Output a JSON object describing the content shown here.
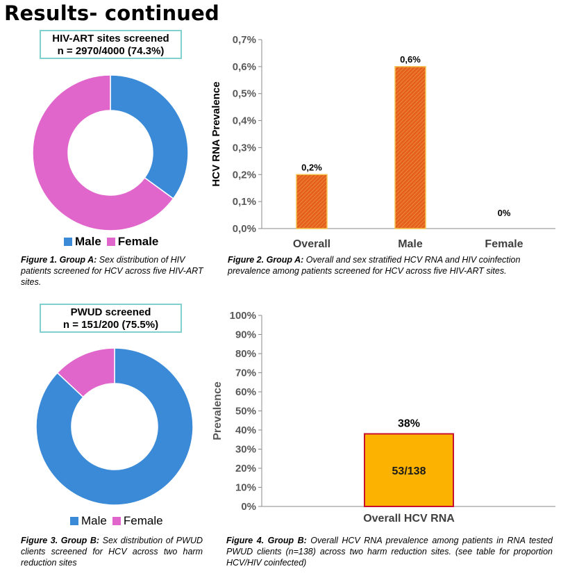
{
  "page": {
    "title": "Results- continued"
  },
  "colors": {
    "male": "#3a8ad8",
    "female": "#e066cc",
    "bar_fig2": "#e4601c",
    "bar_fig2_edge": "#f3c24e",
    "bar_fig4": "#fbb200",
    "bar_fig4_edge": "#c8102e",
    "box_border": "#7fd0cf"
  },
  "group_a": {
    "box_line1": "HIV-ART sites screened",
    "box_line2": "n = 2970/4000 (74.3%)",
    "caption_label": "Figure 1. Group A:",
    "caption_text": " Sex distribution of HIV patients screened for HCV across five HIV-ART sites."
  },
  "group_b": {
    "box_line1": "PWUD screened",
    "box_line2": "n = 151/200 (75.5%)",
    "caption_label": "Figure 3. Group B:",
    "caption_text": " Sex distribution of PWUD clients screened for HCV across two harm reduction sites"
  },
  "figure2": {
    "caption_label": "Figure 2. Group A:",
    "caption_text": " Overall and sex stratified HCV RNA and HIV coinfection prevalence among patients screened for HCV across five HIV-ART sites."
  },
  "figure4": {
    "caption_label": "Figure 4. Group B:",
    "caption_text": " Overall HCV RNA prevalence among patients in RNA tested PWUD clients (n=138) across two harm reduction sites. (see table for proportion HCV/HIV coinfected)"
  },
  "chart_data": [
    {
      "id": "fig1",
      "type": "pie",
      "donut": true,
      "categories": [
        "Male",
        "Female"
      ],
      "values": [
        35,
        65
      ],
      "colors": [
        "#3a8ad8",
        "#e066cc"
      ],
      "legend": "bottom"
    },
    {
      "id": "fig2",
      "type": "bar",
      "categories": [
        "Overall",
        "Male",
        "Female"
      ],
      "values": [
        0.2,
        0.6,
        0.0
      ],
      "data_labels": [
        "0,2%",
        "0,6%",
        "0%"
      ],
      "ylabel": "HCV RNA Prevalence",
      "ylim": [
        0,
        0.7
      ],
      "yticks": [
        "0,0%",
        "0,1%",
        "0,2%",
        "0,3%",
        "0,4%",
        "0,5%",
        "0,6%",
        "0,7%"
      ],
      "grid": false
    },
    {
      "id": "fig3",
      "type": "pie",
      "donut": true,
      "categories": [
        "Male",
        "Female"
      ],
      "values": [
        87,
        13
      ],
      "colors": [
        "#3a8ad8",
        "#e066cc"
      ],
      "legend": "bottom"
    },
    {
      "id": "fig4",
      "type": "bar",
      "categories": [
        "Overall HCV RNA"
      ],
      "values": [
        38
      ],
      "data_labels": [
        "38%"
      ],
      "inner_labels": [
        "53/138"
      ],
      "ylabel": "Prevalence",
      "ylim": [
        0,
        100
      ],
      "yticks": [
        "0%",
        "10%",
        "20%",
        "30%",
        "40%",
        "50%",
        "60%",
        "70%",
        "80%",
        "90%",
        "100%"
      ],
      "grid": false
    }
  ]
}
